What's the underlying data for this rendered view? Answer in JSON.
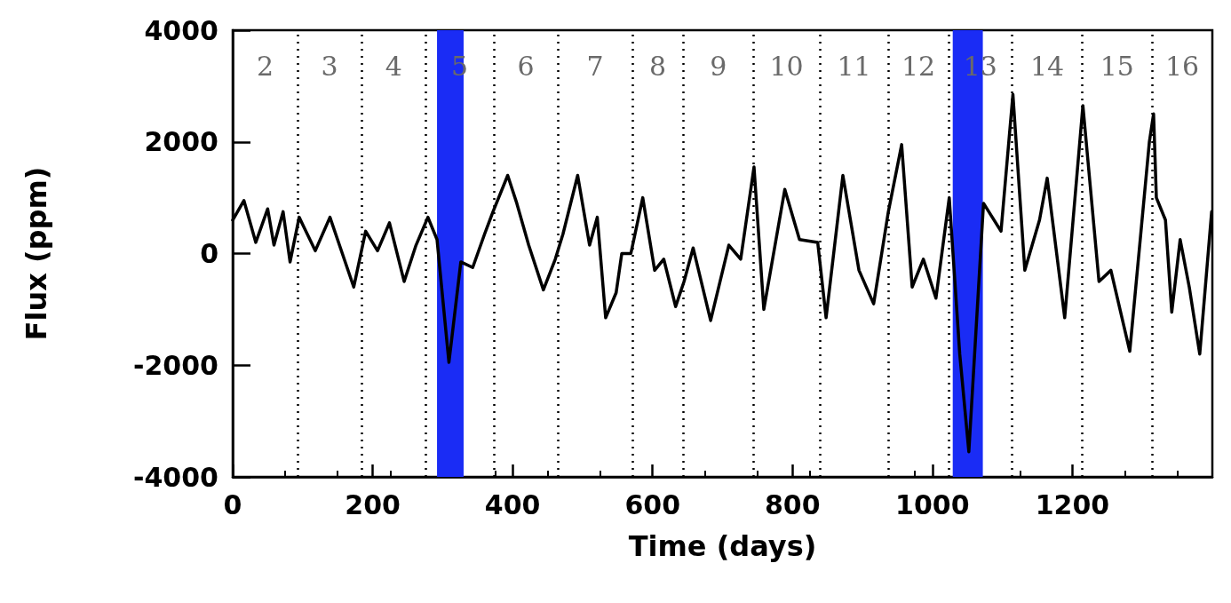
{
  "chart_data": {
    "type": "line",
    "xlabel": "Time (days)",
    "ylabel": "Flux (ppm)",
    "xlim": [
      0,
      1400
    ],
    "xticks": [
      0,
      200,
      400,
      600,
      800,
      1000,
      1200
    ],
    "ylim": [
      -4000,
      4000
    ],
    "yticks": [
      -4000,
      -2000,
      0,
      2000,
      4000
    ],
    "grid": false,
    "marker": "none",
    "line_style": "solid",
    "series": [
      {
        "color": "#000000",
        "x": [
          0,
          16,
          33,
          50,
          59,
          72,
          82,
          95,
          118,
          139,
          173,
          190,
          207,
          224,
          245,
          262,
          279,
          292,
          309,
          326,
          343,
          360,
          372,
          393,
          406,
          423,
          444,
          461,
          472,
          493,
          510,
          521,
          533,
          548,
          556,
          569,
          586,
          603,
          616,
          633,
          645,
          658,
          683,
          709,
          726,
          745,
          759,
          789,
          810,
          836,
          848,
          872,
          895,
          916,
          937,
          956,
          971,
          987,
          1005,
          1024,
          1039,
          1052,
          1073,
          1098,
          1115,
          1132,
          1153,
          1164,
          1189,
          1215,
          1238,
          1255,
          1282,
          1310,
          1316,
          1320,
          1333,
          1342,
          1354,
          1367,
          1382,
          1399
        ],
        "values": [
          600,
          950,
          200,
          800,
          150,
          750,
          -150,
          650,
          50,
          650,
          -600,
          400,
          50,
          550,
          -500,
          150,
          650,
          250,
          -1950,
          -150,
          -250,
          350,
          750,
          1400,
          900,
          150,
          -650,
          -100,
          350,
          1400,
          150,
          650,
          -1150,
          -700,
          0,
          0,
          1000,
          -300,
          -100,
          -950,
          -500,
          100,
          -1200,
          150,
          -100,
          1550,
          -1000,
          1150,
          250,
          200,
          -1150,
          1400,
          -300,
          -900,
          750,
          1950,
          -600,
          -100,
          -800,
          1000,
          -1800,
          -3550,
          900,
          400,
          2850,
          -300,
          600,
          1350,
          -1150,
          2650,
          -500,
          -300,
          -1750,
          2000,
          2500,
          1000,
          600,
          -1050,
          250,
          -600,
          -1800,
          750
        ]
      }
    ],
    "ref_lines": [
      {
        "axis": "x",
        "value": 93,
        "color": "#000000",
        "line_style": "dotted"
      },
      {
        "axis": "x",
        "value": 184,
        "color": "#000000",
        "line_style": "dotted"
      },
      {
        "axis": "x",
        "value": 276,
        "color": "#000000",
        "line_style": "dotted"
      },
      {
        "axis": "x",
        "value": 373,
        "color": "#000000",
        "line_style": "dotted"
      },
      {
        "axis": "x",
        "value": 465,
        "color": "#000000",
        "line_style": "dotted"
      },
      {
        "axis": "x",
        "value": 571,
        "color": "#000000",
        "line_style": "dotted"
      },
      {
        "axis": "x",
        "value": 644,
        "color": "#000000",
        "line_style": "dotted"
      },
      {
        "axis": "x",
        "value": 744,
        "color": "#000000",
        "line_style": "dotted"
      },
      {
        "axis": "x",
        "value": 839,
        "color": "#000000",
        "line_style": "dotted"
      },
      {
        "axis": "x",
        "value": 937,
        "color": "#000000",
        "line_style": "dotted"
      },
      {
        "axis": "x",
        "value": 1023,
        "color": "#000000",
        "line_style": "dotted"
      },
      {
        "axis": "x",
        "value": 1114,
        "color": "#000000",
        "line_style": "dotted"
      },
      {
        "axis": "x",
        "value": 1214,
        "color": "#000000",
        "line_style": "dotted"
      },
      {
        "axis": "x",
        "value": 1314,
        "color": "#000000",
        "line_style": "dotted"
      }
    ],
    "bands": [
      {
        "axis": "x",
        "from": 292,
        "to": 330,
        "color": "#1a2cf5"
      },
      {
        "axis": "x",
        "from": 1029,
        "to": 1072,
        "color": "#1a2cf5"
      }
    ],
    "annotations": [
      "2",
      "3",
      "4",
      "5",
      "6",
      "7",
      "8",
      "9",
      "10",
      "11",
      "12",
      "13",
      "14",
      "15",
      "16"
    ]
  }
}
